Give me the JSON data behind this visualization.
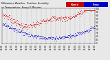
{
  "background_color": "#e8e8e8",
  "plot_bg_color": "#e8e8e8",
  "grid_color": "#aaaaaa",
  "legend_color_red": "#cc0000",
  "legend_color_blue": "#0000cc",
  "dot_color_red": "#cc0000",
  "dot_color_blue": "#0000cc",
  "dot_size": 1.2,
  "figsize": [
    1.6,
    0.87
  ],
  "dpi": 100,
  "title_text": "Milwaukee Weather  Outdoor Humidity",
  "title_text2": "vs Temperature  Every 5 Minutes",
  "n_points": 288,
  "seed": 7
}
